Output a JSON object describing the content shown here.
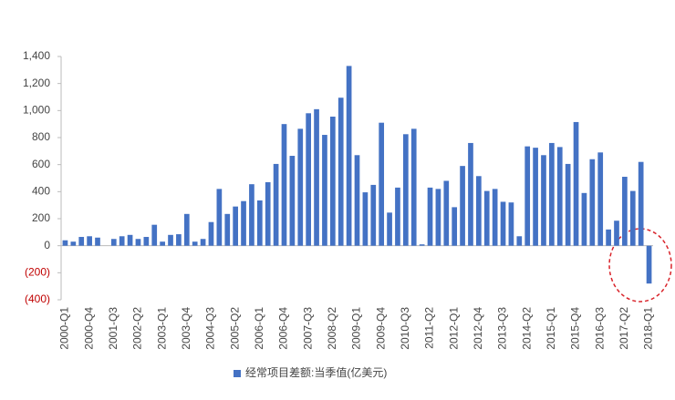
{
  "chart_data": {
    "type": "bar",
    "categories": [
      "2000-Q1",
      null,
      null,
      "2000-Q4",
      null,
      null,
      "2001-Q3",
      null,
      null,
      "2002-Q2",
      null,
      null,
      "2003-Q1",
      null,
      null,
      "2003-Q4",
      null,
      null,
      "2004-Q3",
      null,
      null,
      "2005-Q2",
      null,
      null,
      "2006-Q1",
      null,
      null,
      "2006-Q4",
      null,
      null,
      "2007-Q3",
      null,
      null,
      "2008-Q2",
      null,
      null,
      "2009-Q1",
      null,
      null,
      "2009-Q4",
      null,
      null,
      "2010-Q3",
      null,
      null,
      "2011-Q2",
      null,
      null,
      "2012-Q1",
      null,
      null,
      "2012-Q4",
      null,
      null,
      "2013-Q3",
      null,
      null,
      "2014-Q2",
      null,
      null,
      "2015-Q1",
      null,
      null,
      "2015-Q4",
      null,
      null,
      "2016-Q3",
      null,
      null,
      "2017-Q2",
      null,
      null,
      "2018-Q1"
    ],
    "series": [
      {
        "name": "经常项目差额:当季值(亿美元)",
        "color": "#4472c4",
        "values": [
          40,
          30,
          65,
          70,
          60,
          0,
          50,
          70,
          80,
          50,
          65,
          155,
          30,
          80,
          85,
          235,
          30,
          50,
          175,
          420,
          235,
          290,
          330,
          455,
          335,
          470,
          605,
          900,
          665,
          865,
          980,
          1010,
          820,
          955,
          1095,
          1330,
          670,
          395,
          450,
          910,
          245,
          430,
          825,
          865,
          10,
          430,
          420,
          480,
          285,
          590,
          760,
          515,
          405,
          420,
          325,
          320,
          70,
          735,
          725,
          670,
          760,
          730,
          605,
          915,
          390,
          640,
          690,
          120,
          185,
          510,
          405,
          620,
          -280
        ]
      }
    ],
    "ylim": [
      -400,
      1400
    ],
    "yticks": [
      {
        "value": -400,
        "label": "(400)"
      },
      {
        "value": -200,
        "label": "(200)"
      },
      0,
      200,
      400,
      600,
      800,
      {
        "value": 1000,
        "label": "1,000"
      },
      {
        "value": 1200,
        "label": "1,200"
      },
      {
        "value": 1400,
        "label": "1,400"
      }
    ],
    "negative_tick_color": "#c00000",
    "grid": false,
    "legend": "bottom"
  }
}
